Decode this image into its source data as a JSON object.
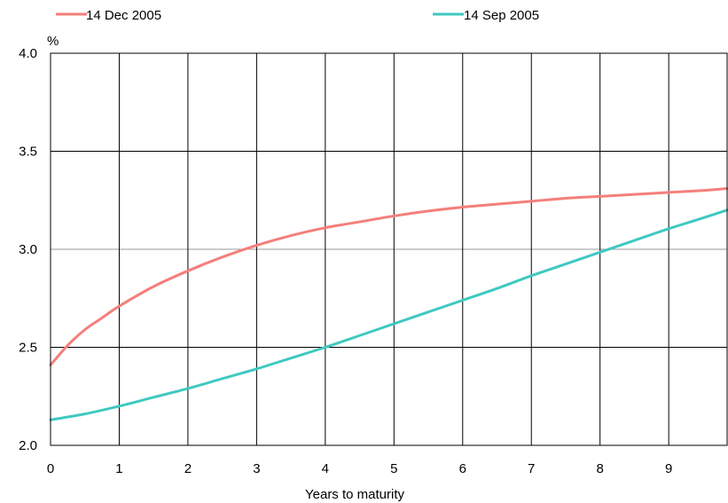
{
  "chart_data": {
    "type": "line",
    "title": "",
    "xlabel": "Years to maturity",
    "ylabel": "%",
    "xlim": [
      0,
      9.85
    ],
    "ylim": [
      2.0,
      4.0
    ],
    "x_ticks": [
      "0",
      "1",
      "2",
      "3",
      "4",
      "5",
      "6",
      "7",
      "8",
      "9"
    ],
    "y_ticks": [
      "2.0",
      "2.5",
      "3.0",
      "3.5",
      "4.0"
    ],
    "grid": true,
    "legend_position": "top",
    "series": [
      {
        "name": "14 Dec 2005",
        "color": "#f47f7b",
        "x": [
          0,
          0.25,
          0.5,
          0.75,
          1,
          1.5,
          2,
          2.5,
          3,
          3.5,
          4,
          4.5,
          5,
          5.5,
          6,
          6.5,
          7,
          7.5,
          8,
          8.5,
          9,
          9.5,
          9.85
        ],
        "y": [
          2.41,
          2.51,
          2.59,
          2.65,
          2.71,
          2.81,
          2.89,
          2.96,
          3.02,
          3.07,
          3.11,
          3.14,
          3.17,
          3.195,
          3.215,
          3.23,
          3.245,
          3.26,
          3.27,
          3.28,
          3.29,
          3.3,
          3.31
        ]
      },
      {
        "name": "14 Sep 2005",
        "color": "#3fc9c1",
        "x": [
          0,
          0.5,
          1,
          1.5,
          2,
          2.5,
          3,
          3.5,
          4,
          4.5,
          5,
          5.5,
          6,
          6.5,
          7,
          7.5,
          8,
          8.5,
          9,
          9.5,
          9.85
        ],
        "y": [
          2.13,
          2.16,
          2.2,
          2.245,
          2.29,
          2.34,
          2.39,
          2.445,
          2.5,
          2.56,
          2.62,
          2.68,
          2.74,
          2.8,
          2.865,
          2.925,
          2.985,
          3.045,
          3.105,
          3.16,
          3.2
        ]
      }
    ]
  }
}
